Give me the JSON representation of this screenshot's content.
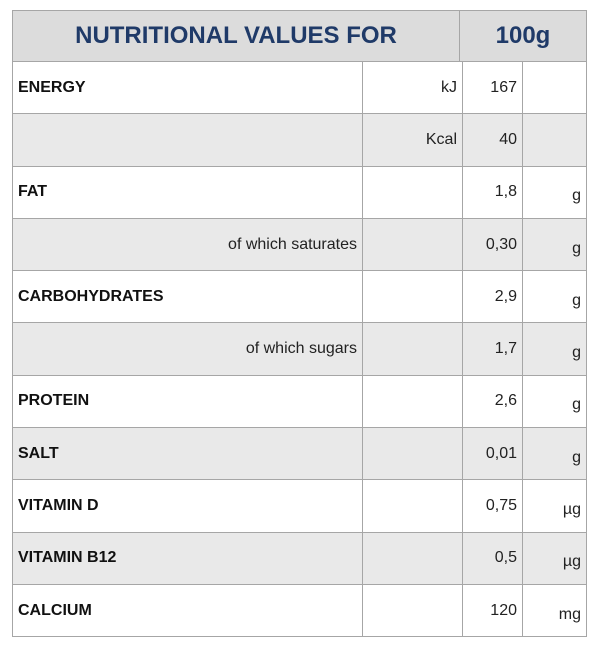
{
  "header": {
    "title": "NUTRITIONAL VALUES FOR",
    "amount": "100g"
  },
  "table": {
    "rows": [
      {
        "name": "ENERGY",
        "measure": "kJ",
        "value": "167"
      },
      {
        "measure": "Kcal",
        "value": "40"
      },
      {
        "name": "FAT",
        "value": "1,8",
        "unit": "g"
      },
      {
        "detail": "of which saturates",
        "value": "0,30",
        "unit": "g"
      },
      {
        "name": "CARBOHYDRATES",
        "value": "2,9",
        "unit": "g"
      },
      {
        "detail": "of which sugars",
        "value": "1,7",
        "unit": "g"
      },
      {
        "name": "PROTEIN",
        "value": "2,6",
        "unit": "g"
      },
      {
        "name": "SALT",
        "value": "0,01",
        "unit": "g"
      },
      {
        "name": "VITAMIN D",
        "value": "0,75",
        "unit": "µg"
      },
      {
        "name": "VITAMIN B12",
        "value": "0,5",
        "unit": "µg"
      },
      {
        "name": "CALCIUM",
        "value": "120",
        "unit": "mg"
      }
    ]
  }
}
